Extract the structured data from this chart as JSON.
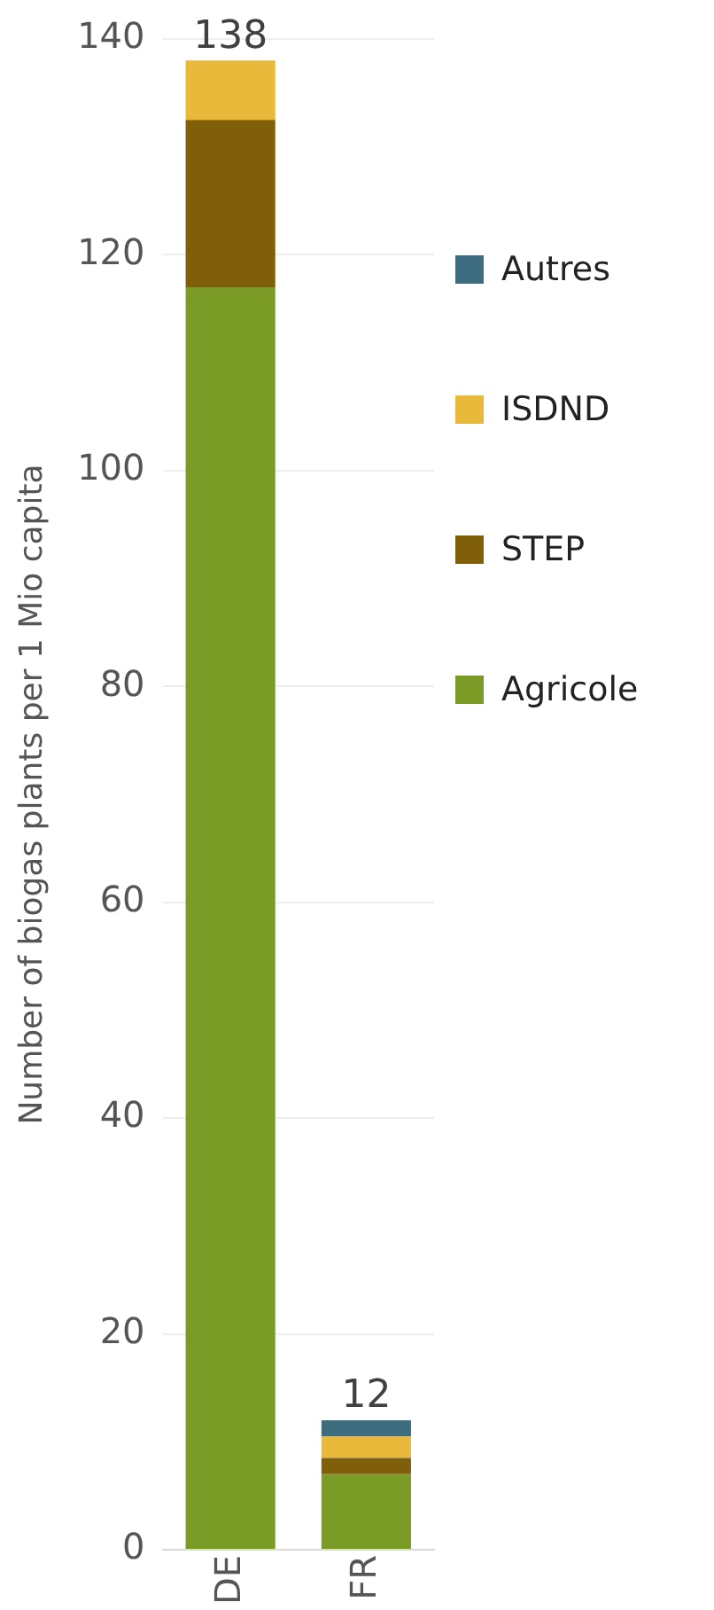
{
  "chart_data": {
    "type": "bar",
    "stacked": true,
    "categories": [
      "DE",
      "FR"
    ],
    "ylabel": "Number of biogas plants per 1 Mio capita",
    "series": [
      {
        "name": "Agricole",
        "color": "#7a9c27",
        "values": [
          117,
          7
        ]
      },
      {
        "name": "STEP",
        "color": "#7f5f0a",
        "values": [
          15.5,
          1.5
        ]
      },
      {
        "name": "ISDND",
        "color": "#e8b93a",
        "values": [
          5.5,
          2
        ]
      },
      {
        "name": "Autres",
        "color": "#3e6d80",
        "values": [
          0,
          1.5
        ]
      }
    ],
    "totals": [
      "138",
      "12"
    ],
    "ylim": [
      0,
      140
    ],
    "yticks": [
      0,
      20,
      40,
      60,
      80,
      100,
      120,
      140
    ],
    "grid": "y",
    "legend": "right"
  }
}
